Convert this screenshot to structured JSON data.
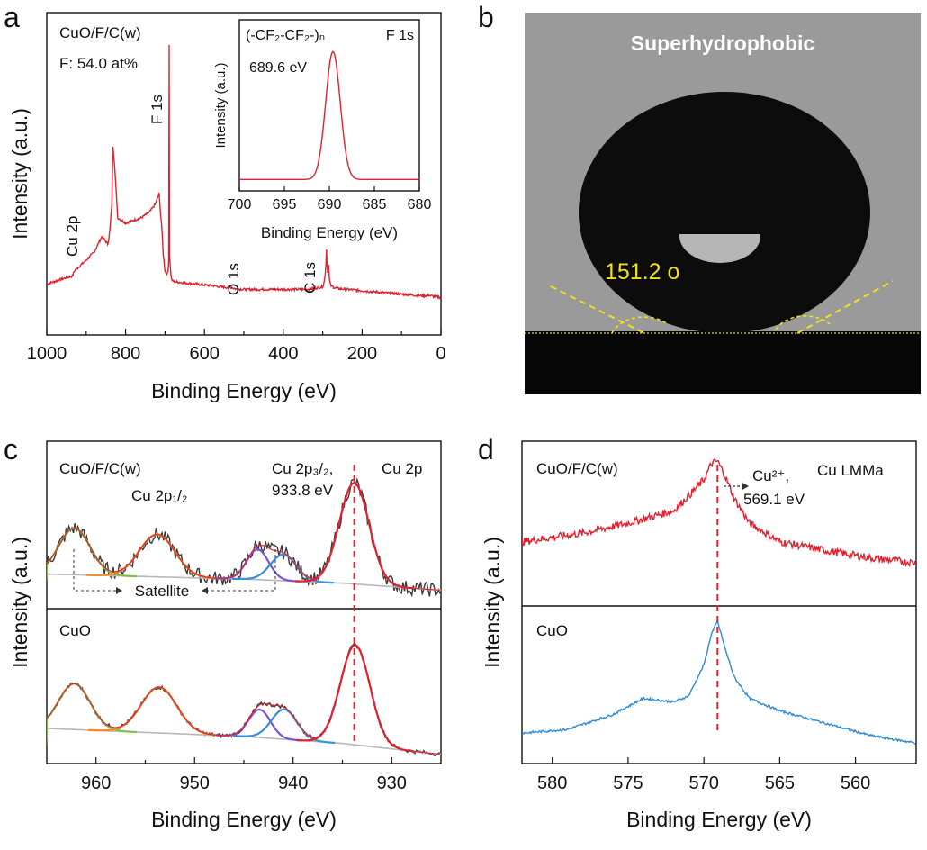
{
  "chart_data": [
    {
      "panel": "a",
      "type": "line",
      "xlabel": "Binding Energy (eV)",
      "ylabel": "Intensity (a.u.)",
      "xlim": [
        1000,
        0
      ],
      "xticks": [
        "1000",
        "800",
        "600",
        "400",
        "200",
        "0"
      ],
      "sample_label": "CuO/F/C(w)",
      "composition": "F: 54.0 at%",
      "series": [
        {
          "name": "XPS survey",
          "color": "#e3202e",
          "x": [
            1000,
            960,
            935,
            930,
            900,
            880,
            870,
            860,
            850,
            845,
            840,
            835,
            832,
            828,
            820,
            800,
            780,
            760,
            740,
            725,
            720,
            715,
            712,
            708,
            705,
            700,
            697,
            694,
            692,
            690,
            689,
            688,
            686,
            684,
            680,
            660,
            640,
            620,
            600,
            580,
            570,
            560,
            540,
            532,
            528,
            520,
            500,
            480,
            450,
            420,
            400,
            380,
            360,
            340,
            320,
            300,
            296,
            294,
            292,
            290,
            289,
            287,
            285,
            283,
            280,
            270,
            260,
            240,
            220,
            200,
            180,
            160,
            140,
            120,
            100,
            80,
            60,
            40,
            30,
            25,
            20,
            10,
            0
          ],
          "y": [
            10,
            12,
            13,
            15,
            19,
            22,
            25,
            28,
            26,
            25,
            30,
            40,
            62,
            55,
            35,
            33,
            34,
            35,
            37,
            40,
            42,
            44,
            38,
            31,
            22,
            15,
            14,
            14,
            15,
            20,
            100,
            20,
            15,
            12,
            11,
            10.6,
            10.3,
            10,
            9.7,
            9.4,
            9.2,
            9,
            8.7,
            8.9,
            8.5,
            8.2,
            8,
            8,
            8,
            8,
            8,
            8,
            8,
            8,
            8.4,
            9,
            11,
            13,
            17,
            25,
            18,
            13,
            19,
            12,
            9.5,
            8.6,
            8.3,
            8,
            7.8,
            7.5,
            7.2,
            7,
            6.7,
            6.5,
            6.2,
            6,
            5.7,
            5.6,
            5.8,
            5.6,
            5.4,
            5.2,
            5
          ]
        }
      ],
      "annotations": [
        "Cu 2p",
        "F 1s",
        "O 1s",
        "C 1s"
      ],
      "inset": {
        "type": "line",
        "title": "F 1s",
        "formula_text": "(-CF₂-CF₂-)ₙ",
        "peak_label": "689.6 eV",
        "xlabel": "Binding Energy (eV)",
        "ylabel": "Intensity (a.u.)",
        "xlim": [
          700,
          680
        ],
        "xticks": [
          "700",
          "695",
          "690",
          "685",
          "680"
        ],
        "peak": {
          "center": 689.6,
          "fwhm": 1.9,
          "height": 100,
          "baseline": 4
        },
        "color": "#e3202e"
      }
    },
    {
      "panel": "b",
      "type": "image",
      "title": "Superhydrophobic",
      "contact_angle": "151.2 o"
    },
    {
      "panel": "c",
      "type": "line",
      "xlabel": "Binding Energy (eV)",
      "ylabel": "Intensity (a.u.)",
      "xlim": [
        965,
        925
      ],
      "xticks": [
        "960",
        "950",
        "940",
        "930"
      ],
      "title_right": "Cu 2p",
      "subpanels": [
        {
          "label": "CuO/F/C(w)",
          "annotations": [
            "Cu 2p₁/₂",
            "Cu 2p₃/₂,",
            "933.8 eV",
            "Satellite"
          ],
          "peaks": [
            {
              "name": "sat1",
              "center": 962.2,
              "width": 1.6,
              "height": 46,
              "color": "#7ec23e"
            },
            {
              "name": "Cu 2p1/2",
              "center": 953.8,
              "width": 1.8,
              "height": 42,
              "color": "#f08a24"
            },
            {
              "name": "sat2",
              "center": 943.6,
              "width": 1.1,
              "height": 30,
              "color": "#7b52d8"
            },
            {
              "name": "sat3",
              "center": 941.0,
              "width": 1.3,
              "height": 26,
              "color": "#3a8fd4"
            },
            {
              "name": "Cu 2p3/2",
              "center": 933.8,
              "width": 1.5,
              "height": 100,
              "color": "#e3202e"
            }
          ],
          "background": [
            [
              965,
              20
            ],
            [
              945,
              15
            ],
            [
              935,
              11
            ],
            [
              925,
              4
            ]
          ]
        },
        {
          "label": "CuO",
          "peaks": [
            {
              "name": "sat1",
              "center": 962.2,
              "width": 1.6,
              "height": 46,
              "color": "#7ec23e"
            },
            {
              "name": "Cu 2p1/2",
              "center": 953.6,
              "width": 1.8,
              "height": 46,
              "color": "#f08a24"
            },
            {
              "name": "sat2",
              "center": 943.4,
              "width": 1.1,
              "height": 28,
              "color": "#7b52d8"
            },
            {
              "name": "sat3",
              "center": 940.9,
              "width": 1.3,
              "height": 30,
              "color": "#3a8fd4"
            },
            {
              "name": "Cu 2p3/2",
              "center": 933.7,
              "width": 1.5,
              "height": 100,
              "color": "#e3202e"
            }
          ],
          "background": [
            [
              965,
              28
            ],
            [
              945,
              20
            ],
            [
              935,
              13
            ],
            [
              925,
              2
            ]
          ]
        }
      ],
      "marker_x": 933.8
    },
    {
      "panel": "d",
      "type": "line",
      "xlabel": "Binding Energy (eV)",
      "ylabel": "Intensity (a.u.)",
      "xlim": [
        582,
        556
      ],
      "xticks": [
        "580",
        "575",
        "570",
        "565",
        "560"
      ],
      "title_right": "Cu LMMa",
      "annotation_label": "Cu²⁺,",
      "annotation_value": "569.1 eV",
      "marker_x": 569.1,
      "series": [
        {
          "name": "CuO/F/C(w)",
          "color": "#e3202e",
          "x": [
            582,
            578,
            575,
            572,
            571,
            570,
            569.5,
            569.1,
            568.6,
            568,
            567,
            565,
            562,
            559,
            556
          ],
          "y": [
            0.35,
            0.42,
            0.5,
            0.6,
            0.72,
            0.85,
            0.98,
            1.0,
            0.88,
            0.7,
            0.5,
            0.35,
            0.28,
            0.22,
            0.18
          ]
        },
        {
          "name": "CuO",
          "color": "#2e8ad8",
          "x": [
            582,
            579,
            576,
            574,
            572,
            571,
            570,
            569.5,
            569.1,
            568.6,
            568,
            567,
            565,
            562,
            559,
            556
          ],
          "y": [
            0.1,
            0.13,
            0.25,
            0.38,
            0.35,
            0.4,
            0.65,
            0.9,
            1.0,
            0.78,
            0.55,
            0.38,
            0.28,
            0.18,
            0.08,
            0.02
          ]
        }
      ]
    }
  ]
}
